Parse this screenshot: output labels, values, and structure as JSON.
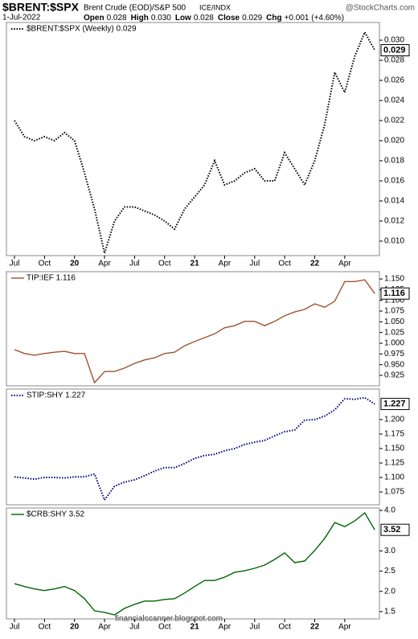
{
  "header": {
    "symbol": "$BRENT:$SPX",
    "description": "Brent Crude (EOD)/S&P 500",
    "exchange": "ICE/INDX",
    "brand": "@StockCharts.com",
    "date": "1-Jul-2022",
    "quote": [
      {
        "label": "Open",
        "value": "0.028"
      },
      {
        "label": "High",
        "value": "0.030"
      },
      {
        "label": "Low",
        "value": "0.028"
      },
      {
        "label": "Close",
        "value": "0.029"
      },
      {
        "label": "Chg",
        "value": "+0.001 (+4.60%)"
      }
    ]
  },
  "watermark": "financialscanner.blogspot.com",
  "chart_data": [
    {
      "type": "line",
      "categories": [
        "Jul",
        null,
        null,
        "Oct",
        null,
        null,
        "20",
        null,
        null,
        "Apr",
        null,
        null,
        "Jul",
        null,
        null,
        "Oct",
        null,
        null,
        "21",
        null,
        null,
        "Apr",
        null,
        null,
        "Jul",
        null,
        null,
        "Oct",
        null,
        null,
        "22",
        null,
        null,
        "Apr",
        null,
        null,
        null
      ],
      "series": [
        {
          "name": "$BRENT:$SPX (Weekly) 0.029",
          "color": "#000000",
          "style": "dotted",
          "values": [
            0.022,
            0.0204,
            0.02,
            0.0204,
            0.02,
            0.0208,
            0.02,
            0.0168,
            0.0132,
            0.0088,
            0.012,
            0.0134,
            0.0134,
            0.013,
            0.0126,
            0.012,
            0.0112,
            0.0132,
            0.0144,
            0.0156,
            0.018,
            0.0156,
            0.016,
            0.0168,
            0.0172,
            0.016,
            0.016,
            0.0188,
            0.0172,
            0.0156,
            0.018,
            0.0216,
            0.0268,
            0.0248,
            0.0284,
            0.0308,
            0.029
          ]
        }
      ],
      "last_label": "0.029",
      "ylim": [
        0.00856,
        0.03176
      ],
      "yticks": [
        {
          "value": 0.01,
          "label": "0.010"
        },
        0.012,
        0.014,
        0.016,
        0.018,
        {
          "value": 0.02,
          "label": "0.020"
        },
        0.022,
        0.024,
        0.026,
        0.028,
        {
          "value": 0.03,
          "label": "0.030"
        }
      ]
    },
    {
      "type": "line",
      "series": [
        {
          "name": "TIP:IEF 1.116",
          "color": "#a0522d",
          "style": "solid",
          "values": [
            0.985,
            0.976,
            0.972,
            0.976,
            0.979,
            0.981,
            0.976,
            0.976,
            0.908,
            0.934,
            0.934,
            0.942,
            0.953,
            0.961,
            0.966,
            0.976,
            0.979,
            0.994,
            1.004,
            1.013,
            1.022,
            1.036,
            1.041,
            1.051,
            1.051,
            1.041,
            1.051,
            1.064,
            1.073,
            1.079,
            1.092,
            1.084,
            1.098,
            1.144,
            1.144,
            1.148,
            1.116
          ]
        }
      ],
      "last_label": "1.116",
      "ylim": [
        0.9006,
        1.167
      ],
      "yticks": [
        0.925,
        {
          "value": 0.95,
          "label": "0.950"
        },
        0.975,
        {
          "value": 1.0,
          "label": "1.000"
        },
        1.025,
        {
          "value": 1.05,
          "label": "1.050"
        },
        1.075,
        {
          "value": 1.1,
          "label": "1.100"
        },
        1.125,
        {
          "value": 1.15,
          "label": "1.150"
        }
      ]
    },
    {
      "type": "line",
      "series": [
        {
          "name": "STIP:SHY 1.227",
          "color": "#00007f",
          "style": "dotted",
          "values": [
            1.101,
            1.099,
            1.097,
            1.1,
            1.1,
            1.099,
            1.101,
            1.101,
            1.106,
            1.061,
            1.085,
            1.092,
            1.096,
            1.103,
            1.111,
            1.117,
            1.117,
            1.124,
            1.133,
            1.138,
            1.14,
            1.146,
            1.15,
            1.157,
            1.161,
            1.164,
            1.172,
            1.179,
            1.182,
            1.199,
            1.2,
            1.206,
            1.217,
            1.236,
            1.235,
            1.238,
            1.227
          ]
        }
      ],
      "last_label": "1.227",
      "ylim": [
        1.0528,
        1.2528
      ],
      "yticks": [
        1.075,
        {
          "value": 1.1,
          "label": "1.100"
        },
        1.125,
        {
          "value": 1.15,
          "label": "1.150"
        },
        1.175,
        {
          "value": 1.2,
          "label": "1.200"
        }
      ]
    },
    {
      "type": "line",
      "categories": [
        "Jul",
        null,
        null,
        "Oct",
        null,
        null,
        "20",
        null,
        null,
        "Apr",
        null,
        null,
        "Jul",
        null,
        null,
        "Oct",
        null,
        null,
        "21",
        null,
        null,
        "Apr",
        null,
        null,
        "Jul",
        null,
        null,
        "Oct",
        null,
        null,
        "22",
        null,
        null,
        "Apr",
        null,
        null,
        null
      ],
      "series": [
        {
          "name": "$CRB:SHY 3.52",
          "color": "#006400",
          "style": "solid",
          "values": [
            2.19,
            2.12,
            2.06,
            2.02,
            2.06,
            2.12,
            2.02,
            1.82,
            1.52,
            1.48,
            1.42,
            1.58,
            1.68,
            1.76,
            1.76,
            1.8,
            1.82,
            1.96,
            2.12,
            2.27,
            2.27,
            2.35,
            2.47,
            2.51,
            2.57,
            2.65,
            2.79,
            2.95,
            2.71,
            2.75,
            3.01,
            3.31,
            3.7,
            3.6,
            3.74,
            3.94,
            3.52
          ]
        }
      ],
      "last_label": "3.52",
      "ylim": [
        1.32,
        4.06
      ],
      "yticks": [
        1.5,
        {
          "value": 2.0,
          "label": "2.0"
        },
        2.5,
        {
          "value": 3.0,
          "label": "3.0"
        },
        {
          "value": 4.0,
          "label": "4.0"
        }
      ]
    }
  ]
}
